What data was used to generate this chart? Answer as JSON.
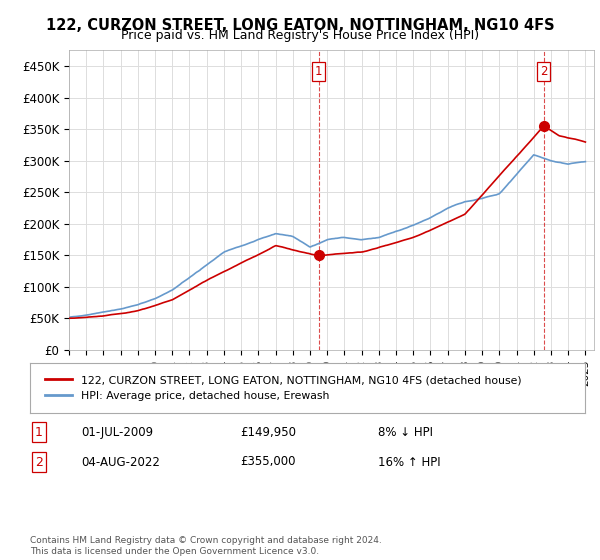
{
  "title": "122, CURZON STREET, LONG EATON, NOTTINGHAM, NG10 4FS",
  "subtitle": "Price paid vs. HM Land Registry's House Price Index (HPI)",
  "ylabel_ticks": [
    "£0",
    "£50K",
    "£100K",
    "£150K",
    "£200K",
    "£250K",
    "£300K",
    "£350K",
    "£400K",
    "£450K"
  ],
  "ytick_values": [
    0,
    50000,
    100000,
    150000,
    200000,
    250000,
    300000,
    350000,
    400000,
    450000
  ],
  "ylim": [
    0,
    475000
  ],
  "xlim_start": 1995.0,
  "xlim_end": 2025.5,
  "marker1_x": 2009.5,
  "marker1_y": 149950,
  "marker2_x": 2022.58,
  "marker2_y": 355000,
  "legend_line1": "122, CURZON STREET, LONG EATON, NOTTINGHAM, NG10 4FS (detached house)",
  "legend_line2": "HPI: Average price, detached house, Erewash",
  "annotation1_date": "01-JUL-2009",
  "annotation1_price": "£149,950",
  "annotation1_hpi": "8% ↓ HPI",
  "annotation2_date": "04-AUG-2022",
  "annotation2_price": "£355,000",
  "annotation2_hpi": "16% ↑ HPI",
  "footer": "Contains HM Land Registry data © Crown copyright and database right 2024.\nThis data is licensed under the Open Government Licence v3.0.",
  "line_color_red": "#cc0000",
  "line_color_blue": "#6699cc",
  "grid_color": "#dddddd",
  "vline_color": "#cc0000",
  "background_color": "#ffffff",
  "hpi_years": [
    1995,
    1996,
    1997,
    1998,
    1999,
    2000,
    2001,
    2002,
    2003,
    2004,
    2005,
    2006,
    2007,
    2008,
    2009,
    2010,
    2011,
    2012,
    2013,
    2014,
    2015,
    2016,
    2017,
    2018,
    2019,
    2020,
    2021,
    2022,
    2023,
    2024,
    2025
  ],
  "hpi_values": [
    52000,
    55000,
    60000,
    65000,
    72000,
    82000,
    95000,
    115000,
    135000,
    155000,
    165000,
    175000,
    185000,
    180000,
    163000,
    175000,
    178000,
    175000,
    178000,
    188000,
    198000,
    210000,
    225000,
    235000,
    240000,
    248000,
    278000,
    310000,
    300000,
    295000,
    300000
  ],
  "prop_years": [
    1995,
    1997,
    1999,
    2001,
    2003,
    2005,
    2007,
    2009.5,
    2012,
    2015,
    2018,
    2022.58,
    2023.5,
    2025.0
  ],
  "prop_values": [
    50000,
    54000,
    62000,
    80000,
    110000,
    138000,
    165000,
    149950,
    155000,
    178000,
    215000,
    355000,
    340000,
    330000
  ]
}
